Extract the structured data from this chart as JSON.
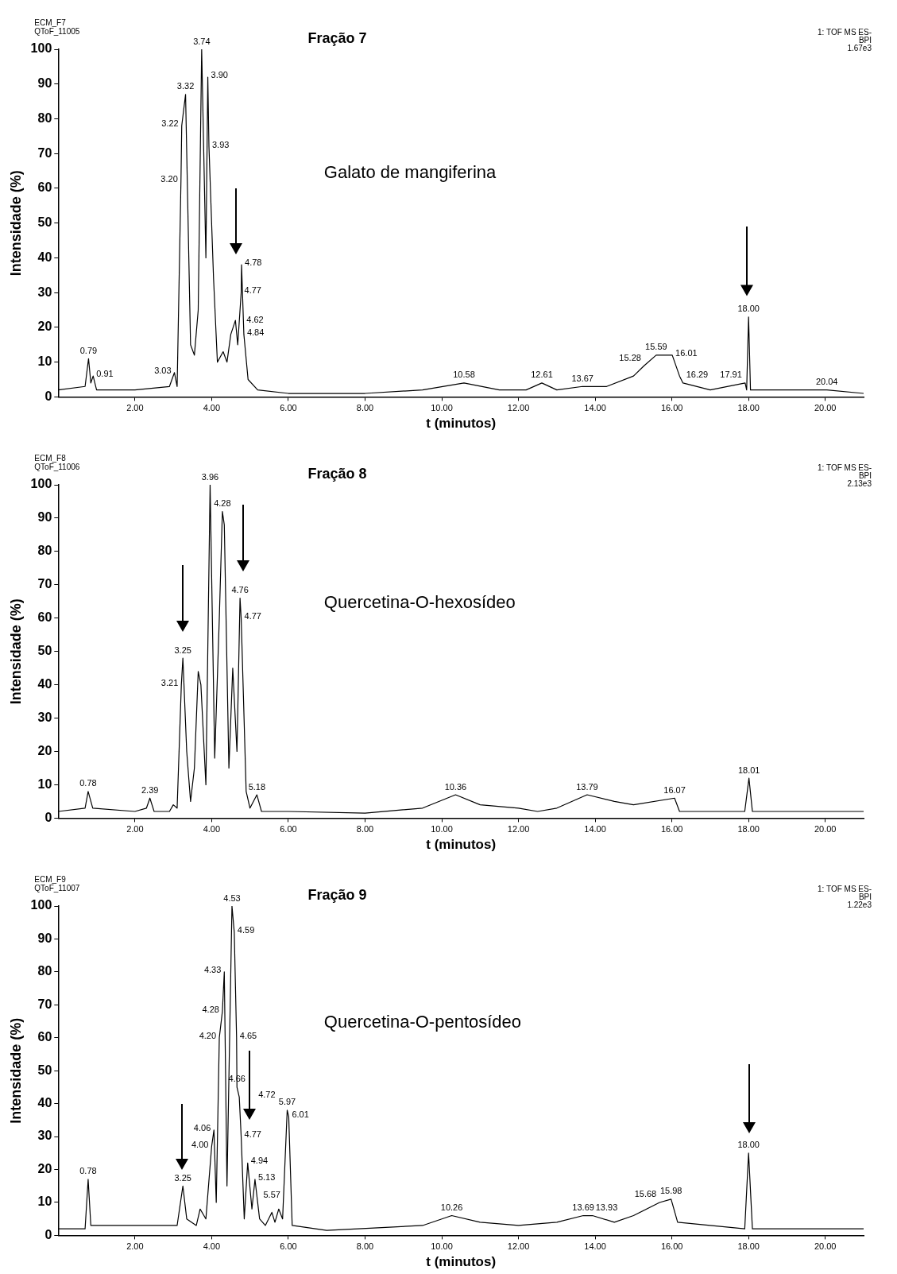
{
  "chart_data": [
    {
      "type": "line",
      "title": "Fração 7",
      "xlabel": "t (minutos)",
      "ylabel": "Intensidade (%)",
      "marker": "none",
      "grid": false,
      "legend": false,
      "xlim": [
        0,
        21
      ],
      "ylim": [
        0,
        100
      ],
      "xticks": [
        {
          "value": 2,
          "label": "2.00"
        },
        {
          "value": 4,
          "label": "4.00"
        },
        {
          "value": 6,
          "label": "6.00"
        },
        {
          "value": 8,
          "label": "8.00"
        },
        {
          "value": 10,
          "label": "10.00"
        },
        {
          "value": 12,
          "label": "12.00"
        },
        {
          "value": 14,
          "label": "14.00"
        },
        {
          "value": 16,
          "label": "16.00"
        },
        {
          "value": 18,
          "label": "18.00"
        },
        {
          "value": 20,
          "label": "20.00"
        }
      ],
      "yticks": [
        0,
        10,
        20,
        30,
        40,
        50,
        60,
        70,
        80,
        90,
        100
      ],
      "x": [
        0,
        0.7,
        0.79,
        0.85,
        0.91,
        1.0,
        2.0,
        2.9,
        3.03,
        3.1,
        3.2,
        3.22,
        3.32,
        3.45,
        3.55,
        3.65,
        3.74,
        3.85,
        3.9,
        3.93,
        4.05,
        4.15,
        4.3,
        4.4,
        4.5,
        4.62,
        4.68,
        4.77,
        4.78,
        4.84,
        4.95,
        5.2,
        6,
        8,
        9.5,
        10.58,
        11.5,
        12.2,
        12.61,
        13,
        13.67,
        14.3,
        15,
        15.28,
        15.59,
        16.01,
        16.2,
        16.29,
        17,
        17.91,
        17.95,
        18.0,
        18.05,
        19,
        20.04,
        21
      ],
      "series": [
        {
          "color": "#000000",
          "values": [
            2,
            3,
            11,
            4,
            6,
            2,
            2,
            3,
            7,
            3,
            62,
            78,
            87,
            15,
            12,
            25,
            100,
            40,
            92,
            72,
            34,
            10,
            13,
            10,
            18,
            22,
            15,
            30,
            38,
            18,
            5,
            2,
            1,
            1,
            2,
            4,
            2,
            2,
            4,
            2,
            3,
            3,
            6,
            9,
            12,
            12,
            6,
            4,
            2,
            4,
            2,
            23,
            2,
            2,
            2,
            1
          ]
        }
      ],
      "annotations": [
        "ECM_F7",
        "QToF_11005",
        "Galato de mangiferina",
        "1: TOF MS ES-",
        "BPI",
        "1.67e3",
        {
          "text": "0.79",
          "x": 0.79,
          "y": 11
        },
        {
          "text": "0.91",
          "x": 0.91,
          "y": 6
        },
        {
          "text": "3.03",
          "x": 3.03,
          "y": 7
        },
        {
          "text": "3.20",
          "x": 3.2,
          "y": 62
        },
        {
          "text": "3.22",
          "x": 3.22,
          "y": 78
        },
        {
          "text": "3.32",
          "x": 3.32,
          "y": 87
        },
        {
          "text": "3.74",
          "x": 3.74,
          "y": 100
        },
        {
          "text": "3.90",
          "x": 3.9,
          "y": 92
        },
        {
          "text": "3.93",
          "x": 3.93,
          "y": 72
        },
        {
          "text": "4.62",
          "x": 4.62,
          "y": 22
        },
        {
          "text": "4.77",
          "x": 4.77,
          "y": 30
        },
        {
          "text": "4.78",
          "x": 4.78,
          "y": 38
        },
        {
          "text": "4.84",
          "x": 4.84,
          "y": 18
        },
        {
          "text": "10.58",
          "x": 10.58,
          "y": 4
        },
        {
          "text": "12.61",
          "x": 12.61,
          "y": 4
        },
        {
          "text": "13.67",
          "x": 13.67,
          "y": 3
        },
        {
          "text": "15.28",
          "x": 15.28,
          "y": 9
        },
        {
          "text": "15.59",
          "x": 15.59,
          "y": 12
        },
        {
          "text": "16.01",
          "x": 16.01,
          "y": 12
        },
        {
          "text": "16.29",
          "x": 16.29,
          "y": 4
        },
        {
          "text": "17.91",
          "x": 17.91,
          "y": 4
        },
        {
          "text": "18.00",
          "x": 18.0,
          "y": 23
        },
        {
          "text": "20.04",
          "x": 20.04,
          "y": 2
        }
      ]
    },
    {
      "type": "line",
      "title": "Fração 8",
      "xlabel": "t (minutos)",
      "ylabel": "Intensidade (%)",
      "marker": "none",
      "grid": false,
      "legend": false,
      "xlim": [
        0,
        21
      ],
      "ylim": [
        0,
        100
      ],
      "xticks": [
        {
          "value": 2,
          "label": "2.00"
        },
        {
          "value": 4,
          "label": "4.00"
        },
        {
          "value": 6,
          "label": "6.00"
        },
        {
          "value": 8,
          "label": "8.00"
        },
        {
          "value": 10,
          "label": "10.00"
        },
        {
          "value": 12,
          "label": "12.00"
        },
        {
          "value": 14,
          "label": "14.00"
        },
        {
          "value": 16,
          "label": "16.00"
        },
        {
          "value": 18,
          "label": "18.00"
        },
        {
          "value": 20,
          "label": "20.00"
        }
      ],
      "yticks": [
        0,
        10,
        20,
        30,
        40,
        50,
        60,
        70,
        80,
        90,
        100
      ],
      "x": [
        0,
        0.7,
        0.78,
        0.9,
        2.0,
        2.3,
        2.39,
        2.5,
        2.9,
        3.0,
        3.1,
        3.21,
        3.25,
        3.35,
        3.45,
        3.55,
        3.65,
        3.72,
        3.85,
        3.96,
        4.08,
        4.2,
        4.28,
        4.33,
        4.45,
        4.55,
        4.66,
        4.74,
        4.77,
        4.9,
        5.0,
        5.18,
        5.3,
        6,
        8,
        9.5,
        10.36,
        11,
        12,
        12.5,
        13,
        13.79,
        14.5,
        15,
        16.07,
        16.2,
        17.9,
        18.01,
        18.1,
        21
      ],
      "series": [
        {
          "color": "#000000",
          "values": [
            2,
            3,
            8,
            3,
            2,
            3,
            6,
            2,
            2,
            4,
            3,
            40,
            48,
            20,
            5,
            15,
            44,
            40,
            10,
            100,
            18,
            60,
            92,
            88,
            15,
            45,
            20,
            66,
            60,
            8,
            3,
            7,
            2,
            2,
            1.5,
            3,
            7,
            4,
            3,
            2,
            3,
            7,
            5,
            4,
            6,
            2,
            2,
            12,
            2,
            2
          ]
        }
      ],
      "annotations": [
        "ECM_F8",
        "QToF_11006",
        "Quercetina-O-hexosídeo",
        "1: TOF MS ES-",
        "BPI",
        "2.13e3",
        {
          "text": "0.78",
          "x": 0.78,
          "y": 8
        },
        {
          "text": "2.39",
          "x": 2.39,
          "y": 6
        },
        {
          "text": "3.21",
          "x": 3.21,
          "y": 40
        },
        {
          "text": "3.25",
          "x": 3.25,
          "y": 48
        },
        {
          "text": "3.96",
          "x": 3.96,
          "y": 100
        },
        {
          "text": "4.28",
          "x": 4.28,
          "y": 92
        },
        {
          "text": "4.76",
          "x": 4.74,
          "y": 66
        },
        {
          "text": "4.77",
          "x": 4.77,
          "y": 60
        },
        {
          "text": "5.18",
          "x": 5.18,
          "y": 7
        },
        {
          "text": "10.36",
          "x": 10.36,
          "y": 7
        },
        {
          "text": "13.79",
          "x": 13.79,
          "y": 7
        },
        {
          "text": "16.07",
          "x": 16.07,
          "y": 6
        },
        {
          "text": "18.01",
          "x": 18.01,
          "y": 12
        }
      ]
    },
    {
      "type": "line",
      "title": "Fração 9",
      "xlabel": "t (minutos)",
      "ylabel": "Intensidade (%)",
      "marker": "none",
      "grid": false,
      "legend": false,
      "xlim": [
        0,
        21
      ],
      "ylim": [
        0,
        100
      ],
      "xticks": [
        {
          "value": 2,
          "label": "2.00"
        },
        {
          "value": 4,
          "label": "4.00"
        },
        {
          "value": 6,
          "label": "6.00"
        },
        {
          "value": 8,
          "label": "8.00"
        },
        {
          "value": 10,
          "label": "10.00"
        },
        {
          "value": 12,
          "label": "12.00"
        },
        {
          "value": 14,
          "label": "14.00"
        },
        {
          "value": 16,
          "label": "16.00"
        },
        {
          "value": 18,
          "label": "18.00"
        },
        {
          "value": 20,
          "label": "20.00"
        }
      ],
      "yticks": [
        0,
        10,
        20,
        30,
        40,
        50,
        60,
        70,
        80,
        90,
        100
      ],
      "x": [
        0,
        0.7,
        0.78,
        0.85,
        2.3,
        3.1,
        3.25,
        3.35,
        3.6,
        3.7,
        3.85,
        4.0,
        4.06,
        4.12,
        4.2,
        4.28,
        4.33,
        4.4,
        4.53,
        4.59,
        4.65,
        4.66,
        4.72,
        4.77,
        4.85,
        4.94,
        5.05,
        5.13,
        5.25,
        5.4,
        5.57,
        5.65,
        5.75,
        5.85,
        5.97,
        6.01,
        6.1,
        7,
        9.5,
        10.26,
        11,
        12,
        13,
        13.69,
        13.93,
        14.5,
        15,
        15.68,
        15.98,
        16.15,
        17.9,
        18.0,
        18.1,
        21
      ],
      "series": [
        {
          "color": "#000000",
          "values": [
            2,
            2,
            17,
            3,
            3,
            3,
            15,
            5,
            3,
            8,
            5,
            27,
            32,
            10,
            60,
            68,
            80,
            15,
            100,
            92,
            60,
            45,
            42,
            30,
            5,
            22,
            8,
            17,
            5,
            3,
            7,
            4,
            8,
            5,
            38,
            36,
            3,
            1.5,
            3,
            6,
            4,
            3,
            4,
            6,
            6,
            4,
            6,
            10,
            11,
            4,
            2,
            25,
            2,
            2
          ]
        }
      ],
      "annotations": [
        "ECM_F9",
        "QToF_11007",
        "Quercetina-O-pentosídeo",
        "1: TOF MS ES-",
        "BPI",
        "1.22e3",
        {
          "text": "0.78",
          "x": 0.78,
          "y": 17
        },
        {
          "text": "3.25",
          "x": 3.25,
          "y": 15
        },
        {
          "text": "4.00",
          "x": 4.0,
          "y": 27
        },
        {
          "text": "4.06",
          "x": 4.06,
          "y": 32
        },
        {
          "text": "4.20",
          "x": 4.2,
          "y": 60
        },
        {
          "text": "4.28",
          "x": 4.28,
          "y": 68
        },
        {
          "text": "4.33",
          "x": 4.33,
          "y": 80
        },
        {
          "text": "4.53",
          "x": 4.53,
          "y": 100
        },
        {
          "text": "4.59",
          "x": 4.59,
          "y": 92
        },
        {
          "text": "4.65",
          "x": 4.65,
          "y": 60
        },
        {
          "text": "4.66",
          "x": 4.66,
          "y": 45
        },
        {
          "text": "4.72",
          "x": 4.72,
          "y": 42
        },
        {
          "text": "4.77",
          "x": 4.77,
          "y": 30
        },
        {
          "text": "4.94",
          "x": 4.94,
          "y": 22
        },
        {
          "text": "5.13",
          "x": 5.13,
          "y": 17
        },
        {
          "text": "5.57",
          "x": 5.57,
          "y": 7
        },
        {
          "text": "5.97",
          "x": 5.97,
          "y": 38
        },
        {
          "text": "6.01",
          "x": 6.01,
          "y": 36
        },
        {
          "text": "10.26",
          "x": 10.26,
          "y": 6
        },
        {
          "text": "13.69",
          "x": 13.69,
          "y": 6
        },
        {
          "text": "13.93",
          "x": 13.93,
          "y": 6
        },
        {
          "text": "15.68",
          "x": 15.68,
          "y": 10
        },
        {
          "text": "15.98",
          "x": 15.98,
          "y": 11
        },
        {
          "text": "18.00",
          "x": 18.0,
          "y": 25
        }
      ]
    }
  ]
}
